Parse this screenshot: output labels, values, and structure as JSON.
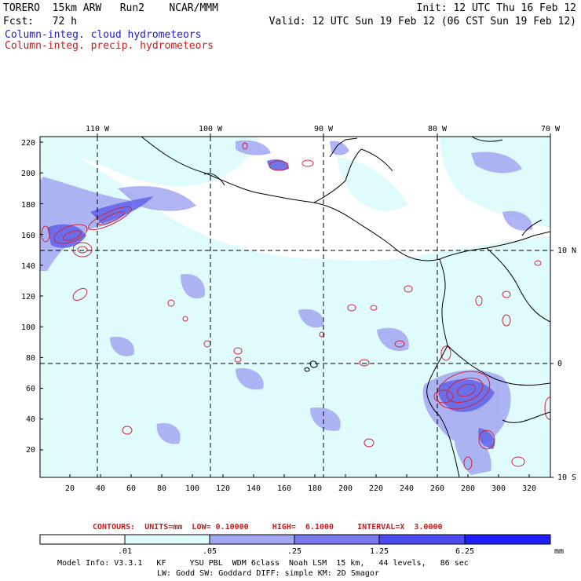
{
  "header": {
    "left_line1": "TORERO  15km ARW   Run2    NCAR/MMM",
    "left_line2": "Fcst:   72 h",
    "right_line1": "Init: 12 UTC Thu 16 Feb 12",
    "right_line2": "Valid: 12 UTC Sun 19 Feb 12 (06 CST Sun 19 Feb 12)",
    "field_cloud": "Column-integ. cloud hydrometeors",
    "field_precip": "Column-integ. precip. hydrometeors"
  },
  "map": {
    "lon_labels": [
      "110 W",
      "100 W",
      "90 W",
      "80 W",
      "70 W"
    ],
    "lat_labels": [
      "10 N",
      "0",
      "10 S"
    ],
    "y_ticks": [
      "220",
      "200",
      "180",
      "160",
      "140",
      "120",
      "100",
      "80",
      "60",
      "40",
      "20"
    ],
    "x_ticks": [
      "20",
      "40",
      "60",
      "80",
      "100",
      "120",
      "140",
      "160",
      "180",
      "200",
      "220",
      "240",
      "260",
      "280",
      "300",
      "320"
    ],
    "colors": {
      "band1": "#e0fbfc",
      "band2": "#a8e6f0",
      "band3": "#a3a7f2",
      "band4": "#6666e8",
      "band5": "#4040ee",
      "band6": "#1a1aff",
      "contour": "#d0253c",
      "coast": "#000000"
    }
  },
  "contours": {
    "text": "CONTOURS:  UNITS=mm  LOW= 0.10000     HIGH=  6.1000     INTERVAL=X  3.0000"
  },
  "colorbar": {
    "labels": [
      ".01",
      ".05",
      ".25",
      "1.25",
      "6.25"
    ],
    "unit": "mm",
    "colors": [
      "#ffffff",
      "#e0fbfc",
      "#c6f2f6",
      "#a3a7f2",
      "#7272ea",
      "#4a4af0",
      "#1e1eff"
    ]
  },
  "footer": {
    "line1": "Model Info: V3.3.1   KF     YSU PBL  WDM 6class  Noah LSM  15 km,   44 levels,   86 sec",
    "line2": "LW: Godd SW: Goddard DIFF: simple KM: 2D Smagor"
  }
}
